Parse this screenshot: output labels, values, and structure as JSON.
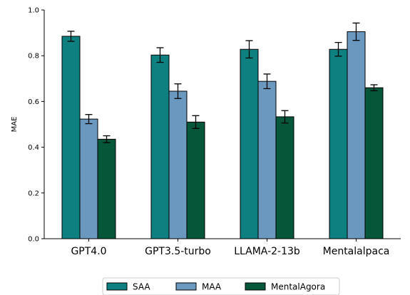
{
  "chart_data": {
    "type": "bar",
    "title": "",
    "xlabel": "",
    "ylabel": "MAE",
    "ylim": [
      0,
      1.0
    ],
    "yticks": [
      "0.0",
      "0.2",
      "0.4",
      "0.6",
      "0.8",
      "1.0"
    ],
    "categories": [
      "GPT4.0",
      "GPT3.5-turbo",
      "LLAMA-2-13b",
      "Mentalalpaca"
    ],
    "series": [
      {
        "name": "SAA",
        "color": "#0e8080",
        "values": [
          0.885,
          0.803,
          0.828,
          0.828
        ],
        "errors": [
          0.022,
          0.032,
          0.038,
          0.03
        ]
      },
      {
        "name": "MAA",
        "color": "#6a98be",
        "values": [
          0.523,
          0.645,
          0.688,
          0.905
        ],
        "errors": [
          0.02,
          0.032,
          0.032,
          0.038
        ]
      },
      {
        "name": "MentalAgora",
        "color": "#06563a",
        "values": [
          0.435,
          0.51,
          0.533,
          0.66
        ],
        "errors": [
          0.015,
          0.028,
          0.027,
          0.013
        ]
      }
    ],
    "grid": false,
    "legend_position": "bottom"
  }
}
